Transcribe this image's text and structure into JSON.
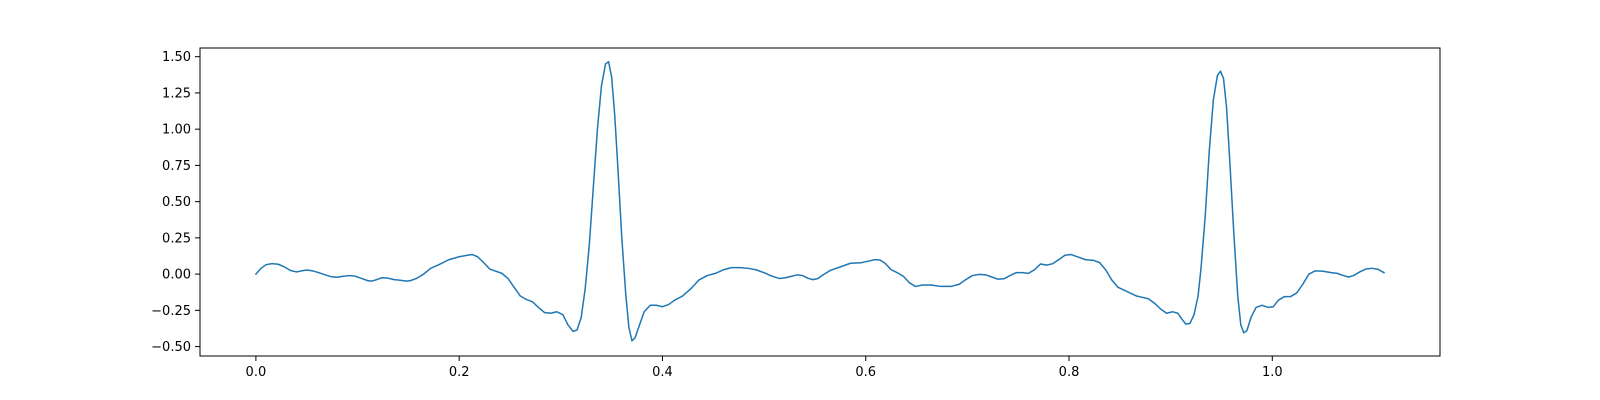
{
  "chart_data": {
    "type": "line",
    "title": "",
    "xlabel": "",
    "ylabel": "",
    "xlim": [
      -0.055,
      1.165
    ],
    "ylim": [
      -0.565,
      1.56
    ],
    "grid": false,
    "x_ticks": [
      0.0,
      0.2,
      0.4,
      0.6,
      0.8,
      1.0
    ],
    "x_tick_labels": [
      "0.0",
      "0.2",
      "0.4",
      "0.6",
      "0.8",
      "1.0"
    ],
    "y_ticks": [
      -0.5,
      -0.25,
      0.0,
      0.25,
      0.5,
      0.75,
      1.0,
      1.25,
      1.5
    ],
    "y_tick_labels": [
      "−0.50",
      "−0.25",
      "0.00",
      "0.25",
      "0.50",
      "0.75",
      "1.00",
      "1.25",
      "1.50"
    ],
    "series": [
      {
        "color": "#1f77b4",
        "points": [
          [
            0.0,
            0.0
          ],
          [
            0.005,
            0.04
          ],
          [
            0.01,
            0.065
          ],
          [
            0.016,
            0.072
          ],
          [
            0.022,
            0.068
          ],
          [
            0.028,
            0.05
          ],
          [
            0.034,
            0.025
          ],
          [
            0.04,
            0.015
          ],
          [
            0.045,
            0.022
          ],
          [
            0.05,
            0.028
          ],
          [
            0.056,
            0.022
          ],
          [
            0.062,
            0.01
          ],
          [
            0.068,
            -0.005
          ],
          [
            0.074,
            -0.018
          ],
          [
            0.08,
            -0.022
          ],
          [
            0.086,
            -0.015
          ],
          [
            0.092,
            -0.01
          ],
          [
            0.098,
            -0.015
          ],
          [
            0.104,
            -0.03
          ],
          [
            0.11,
            -0.045
          ],
          [
            0.114,
            -0.048
          ],
          [
            0.118,
            -0.04
          ],
          [
            0.124,
            -0.025
          ],
          [
            0.13,
            -0.028
          ],
          [
            0.136,
            -0.038
          ],
          [
            0.142,
            -0.042
          ],
          [
            0.148,
            -0.048
          ],
          [
            0.152,
            -0.045
          ],
          [
            0.158,
            -0.03
          ],
          [
            0.165,
            0.0
          ],
          [
            0.172,
            0.04
          ],
          [
            0.18,
            0.065
          ],
          [
            0.19,
            0.1
          ],
          [
            0.2,
            0.12
          ],
          [
            0.208,
            0.13
          ],
          [
            0.213,
            0.135
          ],
          [
            0.218,
            0.12
          ],
          [
            0.224,
            0.08
          ],
          [
            0.23,
            0.035
          ],
          [
            0.236,
            0.02
          ],
          [
            0.242,
            0.005
          ],
          [
            0.248,
            -0.03
          ],
          [
            0.254,
            -0.09
          ],
          [
            0.26,
            -0.15
          ],
          [
            0.266,
            -0.175
          ],
          [
            0.272,
            -0.19
          ],
          [
            0.278,
            -0.23
          ],
          [
            0.284,
            -0.265
          ],
          [
            0.29,
            -0.27
          ],
          [
            0.296,
            -0.26
          ],
          [
            0.302,
            -0.28
          ],
          [
            0.307,
            -0.35
          ],
          [
            0.312,
            -0.395
          ],
          [
            0.316,
            -0.385
          ],
          [
            0.32,
            -0.3
          ],
          [
            0.324,
            -0.1
          ],
          [
            0.328,
            0.2
          ],
          [
            0.332,
            0.6
          ],
          [
            0.336,
            1.0
          ],
          [
            0.34,
            1.3
          ],
          [
            0.344,
            1.45
          ],
          [
            0.347,
            1.465
          ],
          [
            0.35,
            1.36
          ],
          [
            0.353,
            1.1
          ],
          [
            0.356,
            0.75
          ],
          [
            0.36,
            0.25
          ],
          [
            0.364,
            -0.15
          ],
          [
            0.367,
            -0.37
          ],
          [
            0.37,
            -0.46
          ],
          [
            0.373,
            -0.44
          ],
          [
            0.377,
            -0.36
          ],
          [
            0.382,
            -0.26
          ],
          [
            0.388,
            -0.215
          ],
          [
            0.394,
            -0.215
          ],
          [
            0.4,
            -0.225
          ],
          [
            0.406,
            -0.21
          ],
          [
            0.412,
            -0.18
          ],
          [
            0.42,
            -0.15
          ],
          [
            0.428,
            -0.1
          ],
          [
            0.436,
            -0.04
          ],
          [
            0.444,
            -0.01
          ],
          [
            0.452,
            0.005
          ],
          [
            0.46,
            0.03
          ],
          [
            0.468,
            0.045
          ],
          [
            0.476,
            0.045
          ],
          [
            0.484,
            0.04
          ],
          [
            0.492,
            0.03
          ],
          [
            0.5,
            0.01
          ],
          [
            0.508,
            -0.015
          ],
          [
            0.515,
            -0.03
          ],
          [
            0.521,
            -0.025
          ],
          [
            0.527,
            -0.015
          ],
          [
            0.533,
            -0.005
          ],
          [
            0.538,
            -0.01
          ],
          [
            0.543,
            -0.028
          ],
          [
            0.548,
            -0.038
          ],
          [
            0.553,
            -0.03
          ],
          [
            0.558,
            -0.005
          ],
          [
            0.565,
            0.025
          ],
          [
            0.575,
            0.05
          ],
          [
            0.585,
            0.075
          ],
          [
            0.595,
            0.078
          ],
          [
            0.603,
            0.09
          ],
          [
            0.609,
            0.1
          ],
          [
            0.614,
            0.097
          ],
          [
            0.619,
            0.075
          ],
          [
            0.625,
            0.03
          ],
          [
            0.631,
            0.01
          ],
          [
            0.637,
            -0.015
          ],
          [
            0.643,
            -0.06
          ],
          [
            0.649,
            -0.085
          ],
          [
            0.656,
            -0.075
          ],
          [
            0.664,
            -0.075
          ],
          [
            0.674,
            -0.085
          ],
          [
            0.684,
            -0.085
          ],
          [
            0.692,
            -0.07
          ],
          [
            0.698,
            -0.04
          ],
          [
            0.705,
            -0.01
          ],
          [
            0.712,
            -0.002
          ],
          [
            0.718,
            -0.005
          ],
          [
            0.724,
            -0.02
          ],
          [
            0.73,
            -0.035
          ],
          [
            0.736,
            -0.032
          ],
          [
            0.742,
            -0.01
          ],
          [
            0.748,
            0.01
          ],
          [
            0.754,
            0.01
          ],
          [
            0.76,
            0.005
          ],
          [
            0.766,
            0.03
          ],
          [
            0.772,
            0.07
          ],
          [
            0.778,
            0.062
          ],
          [
            0.784,
            0.072
          ],
          [
            0.79,
            0.1
          ],
          [
            0.796,
            0.13
          ],
          [
            0.802,
            0.135
          ],
          [
            0.808,
            0.12
          ],
          [
            0.816,
            0.1
          ],
          [
            0.824,
            0.095
          ],
          [
            0.83,
            0.08
          ],
          [
            0.836,
            0.03
          ],
          [
            0.842,
            -0.04
          ],
          [
            0.848,
            -0.09
          ],
          [
            0.854,
            -0.11
          ],
          [
            0.86,
            -0.13
          ],
          [
            0.866,
            -0.15
          ],
          [
            0.872,
            -0.16
          ],
          [
            0.878,
            -0.17
          ],
          [
            0.884,
            -0.2
          ],
          [
            0.89,
            -0.24
          ],
          [
            0.896,
            -0.27
          ],
          [
            0.902,
            -0.26
          ],
          [
            0.907,
            -0.27
          ],
          [
            0.911,
            -0.31
          ],
          [
            0.915,
            -0.345
          ],
          [
            0.919,
            -0.34
          ],
          [
            0.923,
            -0.28
          ],
          [
            0.927,
            -0.15
          ],
          [
            0.93,
            0.05
          ],
          [
            0.934,
            0.4
          ],
          [
            0.938,
            0.85
          ],
          [
            0.942,
            1.2
          ],
          [
            0.946,
            1.37
          ],
          [
            0.949,
            1.4
          ],
          [
            0.952,
            1.35
          ],
          [
            0.955,
            1.15
          ],
          [
            0.958,
            0.8
          ],
          [
            0.962,
            0.3
          ],
          [
            0.966,
            -0.15
          ],
          [
            0.969,
            -0.35
          ],
          [
            0.972,
            -0.405
          ],
          [
            0.975,
            -0.39
          ],
          [
            0.979,
            -0.3
          ],
          [
            0.984,
            -0.23
          ],
          [
            0.99,
            -0.215
          ],
          [
            0.996,
            -0.23
          ],
          [
            1.001,
            -0.225
          ],
          [
            1.006,
            -0.18
          ],
          [
            1.012,
            -0.155
          ],
          [
            1.018,
            -0.155
          ],
          [
            1.024,
            -0.13
          ],
          [
            1.03,
            -0.07
          ],
          [
            1.036,
            0.0
          ],
          [
            1.042,
            0.022
          ],
          [
            1.05,
            0.02
          ],
          [
            1.058,
            0.01
          ],
          [
            1.064,
            0.005
          ],
          [
            1.07,
            -0.01
          ],
          [
            1.075,
            -0.02
          ],
          [
            1.08,
            -0.01
          ],
          [
            1.086,
            0.015
          ],
          [
            1.092,
            0.035
          ],
          [
            1.098,
            0.04
          ],
          [
            1.104,
            0.033
          ],
          [
            1.11,
            0.01
          ]
        ]
      }
    ]
  }
}
